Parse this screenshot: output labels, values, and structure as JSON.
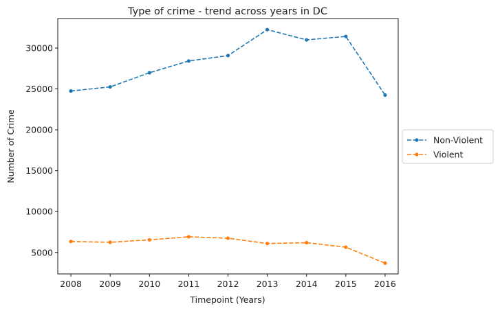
{
  "chart_data": {
    "type": "line",
    "title": "Type of crime - trend across years in DC",
    "xlabel": "Timepoint (Years)",
    "ylabel": "Number of Crime",
    "x": [
      2008,
      2009,
      2010,
      2011,
      2012,
      2013,
      2014,
      2015,
      2016
    ],
    "x_ticks": [
      "2008",
      "2009",
      "2010",
      "2011",
      "2012",
      "2013",
      "2014",
      "2015",
      "2016"
    ],
    "ylim": [
      2380,
      33610
    ],
    "y_ticks": [
      5000,
      10000,
      15000,
      20000,
      25000,
      30000
    ],
    "grid": false,
    "legend_position": "center-right-outside",
    "line_style": "dashed",
    "marker": "dot",
    "series": [
      {
        "name": "Non-Violent",
        "color": "#1f77b4",
        "values": [
          24750,
          25250,
          26980,
          28420,
          29080,
          32250,
          31000,
          31420,
          24250
        ]
      },
      {
        "name": "Violent",
        "color": "#ff7f0e",
        "values": [
          6350,
          6250,
          6550,
          6920,
          6750,
          6100,
          6200,
          5650,
          3700
        ]
      }
    ]
  }
}
